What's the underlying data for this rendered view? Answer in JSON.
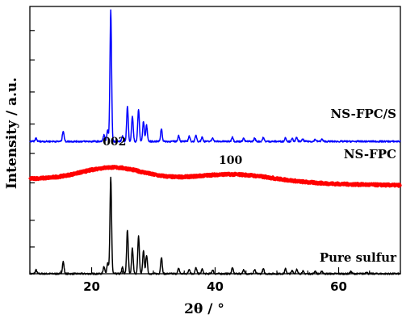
{
  "chart_data": {
    "type": "line",
    "xlabel": "2θ / °",
    "ylabel": "Intensity / a.u.",
    "xlim": [
      10,
      70
    ],
    "ylim": [
      0,
      10
    ],
    "x_ticks": [
      20,
      40,
      60
    ],
    "grid": false,
    "series": [
      {
        "name": "Pure sulfur",
        "color": "#000000",
        "baseline": 0.0,
        "peaks": [
          {
            "x": 11.0,
            "h": 0.14
          },
          {
            "x": 15.4,
            "h": 0.45
          },
          {
            "x": 22.0,
            "h": 0.28
          },
          {
            "x": 22.6,
            "h": 0.42
          },
          {
            "x": 23.1,
            "h": 3.6
          },
          {
            "x": 25.0,
            "h": 0.24
          },
          {
            "x": 25.8,
            "h": 1.65
          },
          {
            "x": 26.6,
            "h": 0.95
          },
          {
            "x": 27.6,
            "h": 1.4
          },
          {
            "x": 28.4,
            "h": 0.85
          },
          {
            "x": 28.9,
            "h": 0.7
          },
          {
            "x": 31.3,
            "h": 0.62
          },
          {
            "x": 34.1,
            "h": 0.2
          },
          {
            "x": 35.8,
            "h": 0.18
          },
          {
            "x": 36.9,
            "h": 0.22
          },
          {
            "x": 37.9,
            "h": 0.17
          },
          {
            "x": 39.6,
            "h": 0.14
          },
          {
            "x": 42.8,
            "h": 0.22
          },
          {
            "x": 44.6,
            "h": 0.14
          },
          {
            "x": 46.4,
            "h": 0.14
          },
          {
            "x": 47.8,
            "h": 0.18
          },
          {
            "x": 51.4,
            "h": 0.18
          },
          {
            "x": 52.5,
            "h": 0.12
          },
          {
            "x": 53.2,
            "h": 0.16
          },
          {
            "x": 54.2,
            "h": 0.1
          },
          {
            "x": 56.2,
            "h": 0.1
          },
          {
            "x": 57.3,
            "h": 0.1
          },
          {
            "x": 62.0,
            "h": 0.08
          },
          {
            "x": 64.5,
            "h": 0.07
          }
        ]
      },
      {
        "name": "NS-FPC",
        "color": "#ff0000",
        "baseline": 3.55,
        "humps": [
          {
            "x": 23.5,
            "h": 0.48,
            "w": 5.0
          },
          {
            "x": 43.0,
            "h": 0.3,
            "w": 6.5
          }
        ],
        "tail_slope": -0.004
      },
      {
        "name": "NS-FPC/S",
        "color": "#0000ff",
        "baseline": 4.95,
        "peaks": [
          {
            "x": 11.0,
            "h": 0.12
          },
          {
            "x": 15.4,
            "h": 0.4
          },
          {
            "x": 22.0,
            "h": 0.24
          },
          {
            "x": 22.6,
            "h": 0.4
          },
          {
            "x": 23.1,
            "h": 4.9
          },
          {
            "x": 25.0,
            "h": 0.2
          },
          {
            "x": 25.8,
            "h": 1.3
          },
          {
            "x": 26.6,
            "h": 0.95
          },
          {
            "x": 27.6,
            "h": 1.2
          },
          {
            "x": 28.4,
            "h": 0.75
          },
          {
            "x": 28.9,
            "h": 0.6
          },
          {
            "x": 31.3,
            "h": 0.48
          },
          {
            "x": 34.1,
            "h": 0.22
          },
          {
            "x": 35.8,
            "h": 0.2
          },
          {
            "x": 36.9,
            "h": 0.22
          },
          {
            "x": 37.9,
            "h": 0.16
          },
          {
            "x": 39.6,
            "h": 0.14
          },
          {
            "x": 42.8,
            "h": 0.18
          },
          {
            "x": 44.6,
            "h": 0.12
          },
          {
            "x": 46.4,
            "h": 0.12
          },
          {
            "x": 47.8,
            "h": 0.14
          },
          {
            "x": 51.4,
            "h": 0.14
          },
          {
            "x": 52.5,
            "h": 0.1
          },
          {
            "x": 53.2,
            "h": 0.14
          },
          {
            "x": 54.2,
            "h": 0.08
          },
          {
            "x": 56.2,
            "h": 0.08
          },
          {
            "x": 57.3,
            "h": 0.08
          }
        ]
      }
    ],
    "annotations": [
      {
        "text": "002",
        "x": 23.7
      },
      {
        "text": "100",
        "x": 42.5
      }
    ]
  }
}
